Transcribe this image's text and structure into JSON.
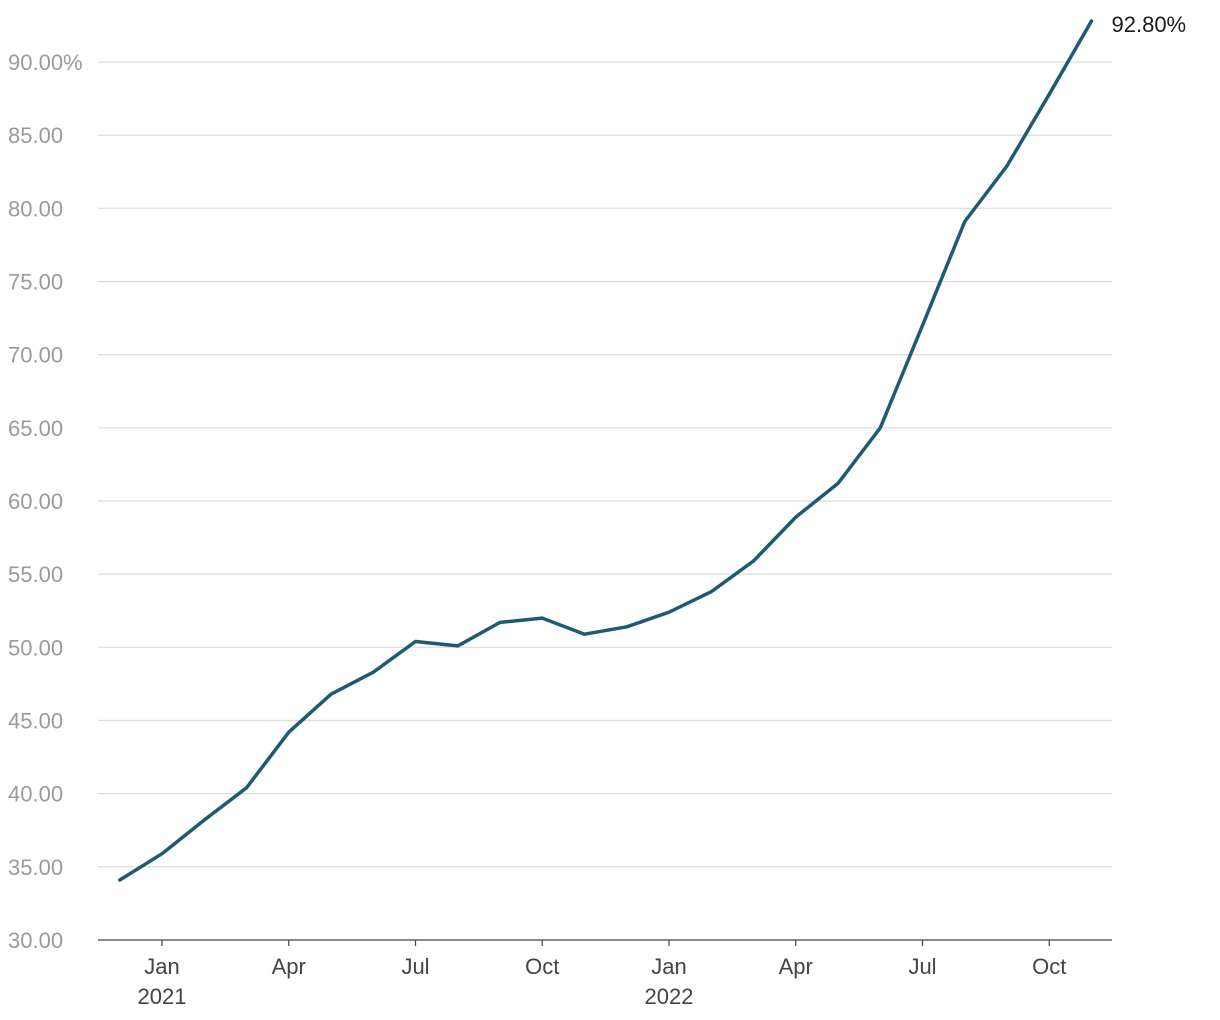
{
  "chart_data": {
    "type": "line",
    "title": "",
    "xlabel": "",
    "ylabel": "",
    "ylim": [
      30,
      92.8
    ],
    "xlim": [
      "2020-11",
      "2022-11"
    ],
    "grid": true,
    "legend": "none",
    "colors": {
      "line": "#1c5b73"
    },
    "y_ticks": [
      {
        "value": 30,
        "label": "30.00"
      },
      {
        "value": 35,
        "label": "35.00"
      },
      {
        "value": 40,
        "label": "40.00"
      },
      {
        "value": 45,
        "label": "45.00"
      },
      {
        "value": 50,
        "label": "50.00"
      },
      {
        "value": 55,
        "label": "55.00"
      },
      {
        "value": 60,
        "label": "60.00"
      },
      {
        "value": 65,
        "label": "65.00"
      },
      {
        "value": 70,
        "label": "70.00"
      },
      {
        "value": 75,
        "label": "75.00"
      },
      {
        "value": 80,
        "label": "80.00"
      },
      {
        "value": 85,
        "label": "85.00"
      },
      {
        "value": 90,
        "label": "90.00%"
      }
    ],
    "x_ticks": [
      {
        "value": "2021-01",
        "label": "Jan",
        "sublabel": "2021"
      },
      {
        "value": "2021-04",
        "label": "Apr",
        "sublabel": ""
      },
      {
        "value": "2021-07",
        "label": "Jul",
        "sublabel": ""
      },
      {
        "value": "2021-10",
        "label": "Oct",
        "sublabel": ""
      },
      {
        "value": "2022-01",
        "label": "Jan",
        "sublabel": "2022"
      },
      {
        "value": "2022-04",
        "label": "Apr",
        "sublabel": ""
      },
      {
        "value": "2022-07",
        "label": "Jul",
        "sublabel": ""
      },
      {
        "value": "2022-10",
        "label": "Oct",
        "sublabel": ""
      }
    ],
    "series": [
      {
        "x": [
          "2020-12",
          "2021-01",
          "2021-02",
          "2021-03",
          "2021-04",
          "2021-05",
          "2021-06",
          "2021-07",
          "2021-08",
          "2021-09",
          "2021-10",
          "2021-11",
          "2021-12",
          "2022-01",
          "2022-02",
          "2022-03",
          "2022-04",
          "2022-05",
          "2022-06",
          "2022-07",
          "2022-08",
          "2022-09",
          "2022-10",
          "2022-11"
        ],
        "values": [
          34.1,
          35.9,
          38.2,
          40.4,
          44.2,
          46.8,
          48.3,
          50.4,
          50.1,
          51.7,
          52.0,
          50.9,
          51.4,
          52.4,
          53.8,
          55.9,
          58.9,
          61.2,
          65.0,
          72.0,
          79.1,
          82.9,
          87.8,
          92.8
        ]
      }
    ],
    "annotations": [
      {
        "x": "2022-11",
        "y": 92.8,
        "text": "92.80%"
      }
    ]
  }
}
